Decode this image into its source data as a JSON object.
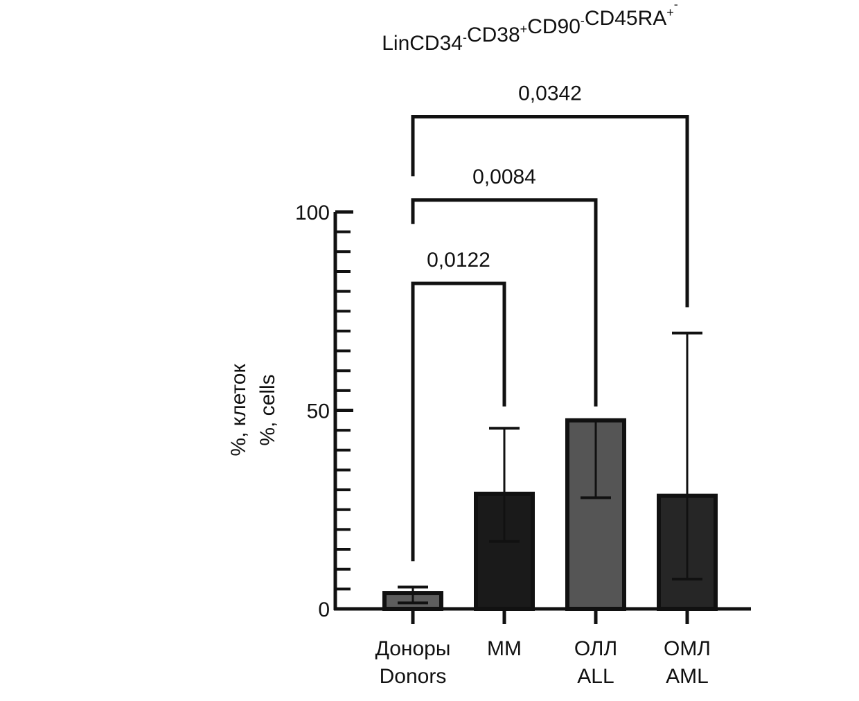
{
  "chart_data": {
    "type": "bar",
    "title": {
      "segments": [
        {
          "text": "Lin",
          "sup": ""
        },
        {
          "text": "CD34",
          "sup": "-"
        },
        {
          "text": "CD38",
          "sup": "+"
        },
        {
          "text": "CD90",
          "sup": "-"
        },
        {
          "text": "CD45RA",
          "sup": "+"
        },
        {
          "text": "",
          "sup": "-"
        }
      ]
    },
    "ylabel": [
      "%, клеток",
      "%, cells"
    ],
    "ylim": [
      0,
      100
    ],
    "yticks": [
      0,
      50,
      100
    ],
    "categories": [
      {
        "line1": "Доноры",
        "line2": "Donors"
      },
      {
        "line1": "ММ",
        "line2": ""
      },
      {
        "line1": "ОЛЛ",
        "line2": "ALL"
      },
      {
        "line1": "ОМЛ",
        "line2": "AML"
      }
    ],
    "series": [
      {
        "values": [
          4,
          29,
          47.5,
          28.5
        ],
        "error_low": [
          1.5,
          17,
          28,
          7.5
        ],
        "error_high": [
          5.5,
          45.5,
          47.5,
          69.5
        ],
        "colors": [
          "#5e5e5e",
          "#1a1a1a",
          "#555555",
          "#262626"
        ]
      }
    ],
    "significance": [
      {
        "from": 0,
        "to": 1,
        "label": "0,0122",
        "level": 82,
        "left_end": 12,
        "right_end": 51
      },
      {
        "from": 0,
        "to": 2,
        "label": "0,0084",
        "level": 103,
        "left_end": 97,
        "right_end": 51
      },
      {
        "from": 0,
        "to": 3,
        "label": "0,0342",
        "level": 124,
        "left_end": 109,
        "right_end": 76
      }
    ]
  }
}
